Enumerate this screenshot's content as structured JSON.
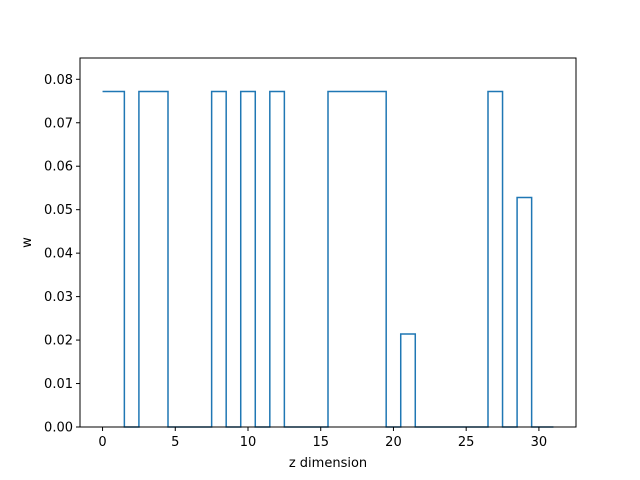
{
  "chart_data": {
    "type": "line",
    "drawstyle": "steps-mid",
    "title": "",
    "xlabel": "z dimension",
    "ylabel": "w",
    "xlim": [
      -1.55,
      32.55
    ],
    "ylim": [
      0.0,
      0.0849
    ],
    "grid": false,
    "legend": "none",
    "color": "#1f77b4",
    "x": [
      0,
      1,
      2,
      3,
      4,
      5,
      6,
      7,
      8,
      9,
      10,
      11,
      12,
      13,
      14,
      15,
      16,
      17,
      18,
      19,
      20,
      21,
      22,
      23,
      24,
      25,
      26,
      27,
      28,
      29,
      30,
      31
    ],
    "y": [
      0.0772,
      0.0772,
      0,
      0.0772,
      0.0772,
      0,
      0,
      0,
      0.0772,
      0,
      0.0772,
      0,
      0.0772,
      0,
      0,
      0,
      0.0772,
      0.0772,
      0.0772,
      0.0772,
      0,
      0.0214,
      0,
      0,
      0,
      0,
      0,
      0.0772,
      0,
      0.0528,
      0,
      0
    ],
    "xticks": [
      0,
      5,
      10,
      15,
      20,
      25,
      30
    ],
    "yticks": [
      0.0,
      0.01,
      0.02,
      0.03,
      0.04,
      0.05,
      0.06,
      0.07,
      0.08
    ],
    "xtick_labels": [
      "0",
      "5",
      "10",
      "15",
      "20",
      "25",
      "30"
    ],
    "ytick_labels": [
      "0.00",
      "0.01",
      "0.02",
      "0.03",
      "0.04",
      "0.05",
      "0.06",
      "0.07",
      "0.08"
    ]
  }
}
